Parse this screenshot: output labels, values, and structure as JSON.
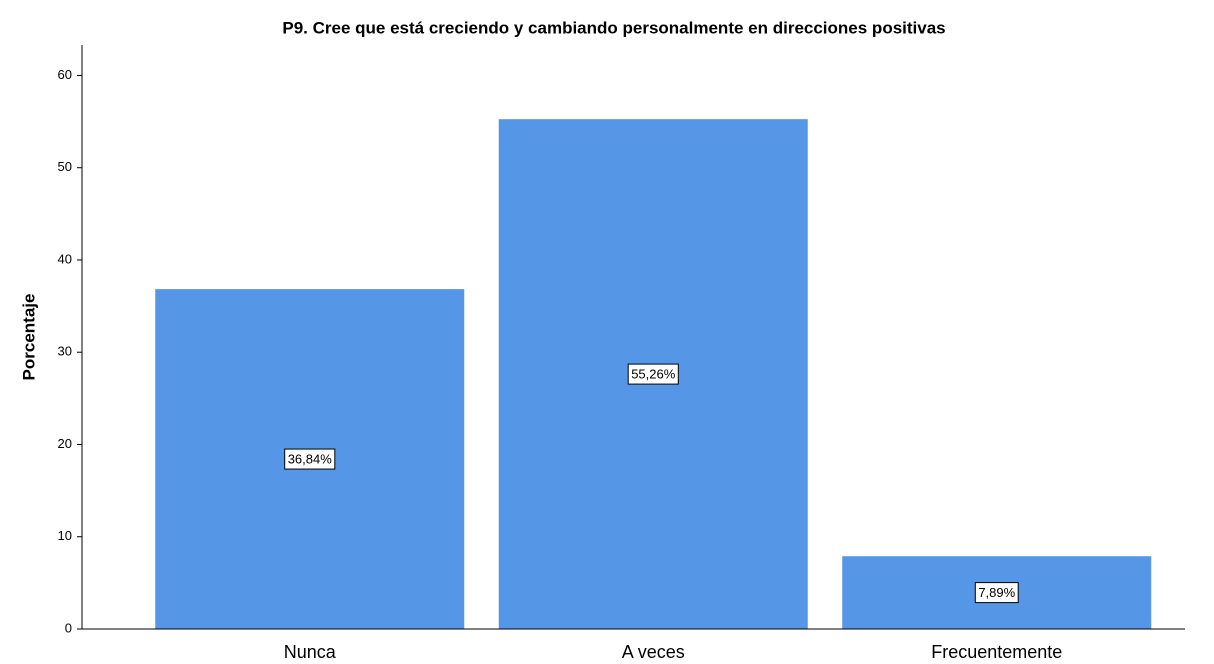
{
  "chart_data": {
    "type": "bar",
    "title": "P9. Cree que está creciendo y cambiando personalmente en direcciones positivas",
    "y_label": "Porcentaje",
    "categories": [
      "Nunca",
      "A veces",
      "Frecuentemente"
    ],
    "values": [
      36.84,
      55.26,
      7.89
    ],
    "value_labels": [
      "36,84%",
      "55,26%",
      "7,89%"
    ],
    "color": "#5596e6",
    "ylim": [
      0,
      63.3
    ],
    "yticks": [
      0,
      10,
      20,
      30,
      40,
      50,
      60
    ],
    "grid": false
  }
}
